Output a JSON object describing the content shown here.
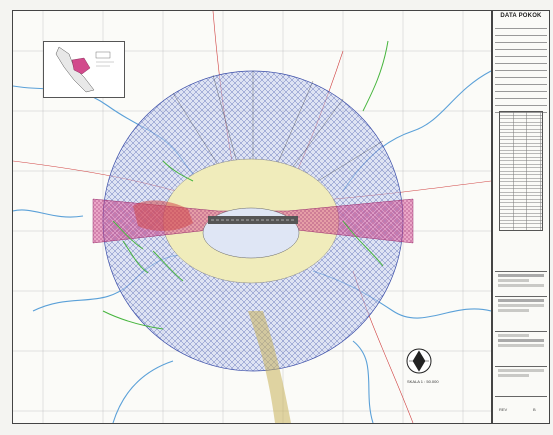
{
  "sheet": {
    "title_block_heading": "DATA POKOK",
    "colors": {
      "hatch_outer": "#3b4ea8",
      "outer_fill": "#c7d0ee",
      "inner_ring": "#f0ecbb",
      "core_fill": "#dfe6f5",
      "corridor": "#d8408f",
      "rivers": "#5aa0d8",
      "green_features": "#46b53d",
      "roads": "#d04040",
      "terrain_yellow": "#c9b25a"
    }
  },
  "map": {
    "inset_label": "",
    "scale_label": "SKALA 1 : 50.000"
  },
  "title_block": {
    "revision_label": "REV",
    "sheet_label": "B"
  }
}
